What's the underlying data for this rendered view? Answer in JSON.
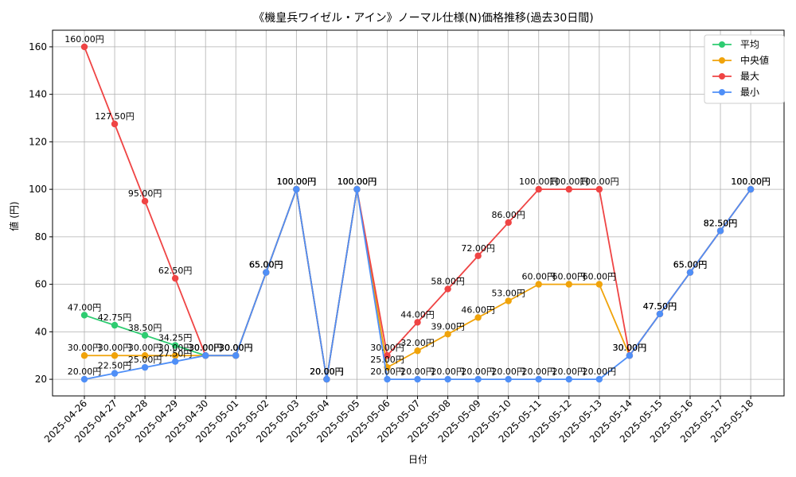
{
  "chart_data": {
    "type": "line",
    "title": "《機皇兵ワイゼル・アイン》ノーマル仕様(N)価格推移(過去30日間)",
    "xlabel": "日付",
    "ylabel": "値 (円)",
    "ylim": [
      13,
      167
    ],
    "yticks": [
      20,
      40,
      60,
      80,
      100,
      120,
      140,
      160
    ],
    "grid": true,
    "legend_position": "top-right",
    "value_suffix": "円",
    "categories": [
      "2025-04-26",
      "2025-04-27",
      "2025-04-28",
      "2025-04-29",
      "2025-04-30",
      "2025-05-01",
      "2025-05-02",
      "2025-05-03",
      "2025-05-04",
      "2025-05-05",
      "2025-05-06",
      "2025-05-07",
      "2025-05-08",
      "2025-05-09",
      "2025-05-10",
      "2025-05-11",
      "2025-05-12",
      "2025-05-13",
      "2025-05-14",
      "2025-05-15",
      "2025-05-16",
      "2025-05-17",
      "2025-05-18"
    ],
    "series": [
      {
        "name": "平均",
        "color": "#2ecc71",
        "values": [
          47.0,
          42.75,
          38.5,
          34.25,
          30.0,
          30.0,
          65.0,
          100.0,
          20.0,
          100.0,
          null,
          null,
          null,
          null,
          null,
          null,
          null,
          null,
          null,
          null,
          null,
          null,
          null
        ]
      },
      {
        "name": "中央値",
        "color": "#f0a30a",
        "values": [
          30.0,
          30.0,
          30.0,
          30.0,
          30.0,
          30.0,
          65.0,
          100.0,
          20.0,
          100.0,
          25.0,
          32.0,
          39.0,
          46.0,
          53.0,
          60.0,
          60.0,
          60.0,
          30.0,
          47.5,
          65.0,
          82.5,
          100.0
        ]
      },
      {
        "name": "最大",
        "color": "#ef4444",
        "values": [
          160.0,
          127.5,
          95.0,
          62.5,
          30.0,
          30.0,
          65.0,
          100.0,
          20.0,
          100.0,
          30.0,
          44.0,
          58.0,
          72.0,
          86.0,
          100.0,
          100.0,
          100.0,
          30.0,
          47.5,
          65.0,
          82.5,
          100.0
        ]
      },
      {
        "name": "最小",
        "color": "#4f8ff7",
        "values": [
          20.0,
          22.5,
          25.0,
          27.5,
          30.0,
          30.0,
          65.0,
          100.0,
          20.0,
          100.0,
          20.0,
          20.0,
          20.0,
          20.0,
          20.0,
          20.0,
          20.0,
          20.0,
          30.0,
          47.5,
          65.0,
          82.5,
          100.0
        ]
      }
    ]
  }
}
